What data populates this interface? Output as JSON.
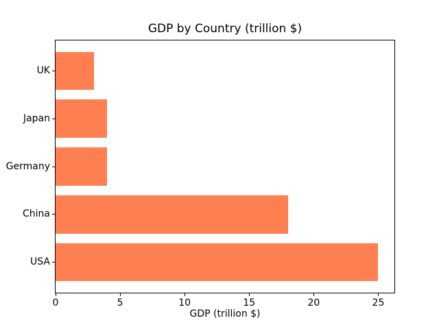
{
  "chart_data": {
    "type": "bar",
    "orientation": "horizontal",
    "title": "GDP by Country (trillion $)",
    "xlabel": "GDP (trillion $)",
    "ylabel": "",
    "categories": [
      "UK",
      "Japan",
      "Germany",
      "China",
      "USA"
    ],
    "values": [
      3,
      4,
      4,
      18,
      25
    ],
    "xticks": [
      0,
      5,
      10,
      15,
      20,
      25
    ],
    "xlim": [
      0,
      26.25
    ],
    "bar_color": "#FF7F50",
    "grid": false,
    "legend": false,
    "background_color": "#ffffff",
    "spine_color": "#000000"
  }
}
